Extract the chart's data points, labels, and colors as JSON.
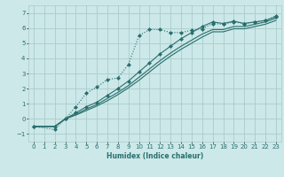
{
  "xlabel": "Humidex (Indice chaleur)",
  "background_color": "#cce8e8",
  "grid_color": "#aacccc",
  "line_color": "#2a6e6e",
  "xlim": [
    -0.5,
    23.5
  ],
  "ylim": [
    -1.5,
    7.5
  ],
  "yticks": [
    -1,
    0,
    1,
    2,
    3,
    4,
    5,
    6,
    7
  ],
  "xticks": [
    0,
    1,
    2,
    3,
    4,
    5,
    6,
    7,
    8,
    9,
    10,
    11,
    12,
    13,
    14,
    15,
    16,
    17,
    18,
    19,
    20,
    21,
    22,
    23
  ],
  "series": [
    {
      "x": [
        0,
        2,
        3,
        4,
        5,
        6,
        7,
        8,
        9,
        10,
        11,
        12,
        13,
        14,
        15,
        16,
        17,
        18,
        19,
        20,
        21,
        22,
        23
      ],
      "y": [
        -0.5,
        -0.7,
        0.0,
        0.8,
        1.7,
        2.1,
        2.6,
        2.7,
        3.6,
        5.5,
        5.9,
        5.9,
        5.7,
        5.7,
        5.85,
        5.95,
        6.3,
        6.25,
        6.4,
        6.3,
        6.4,
        6.5,
        6.8
      ],
      "style": "dotted",
      "marker": "D",
      "markersize": 2.5
    },
    {
      "x": [
        0,
        2,
        3,
        4,
        5,
        6,
        7,
        8,
        9,
        10,
        11,
        12,
        13,
        14,
        15,
        16,
        17,
        18,
        19,
        20,
        21,
        22,
        23
      ],
      "y": [
        -0.5,
        -0.5,
        0.0,
        0.4,
        0.8,
        1.1,
        1.55,
        2.0,
        2.5,
        3.1,
        3.7,
        4.3,
        4.8,
        5.3,
        5.7,
        6.1,
        6.4,
        6.3,
        6.45,
        6.3,
        6.4,
        6.5,
        6.75
      ],
      "style": "solid",
      "marker": "D",
      "markersize": 2.5
    },
    {
      "x": [
        0,
        2,
        3,
        4,
        5,
        6,
        7,
        8,
        9,
        10,
        11,
        12,
        13,
        14,
        15,
        16,
        17,
        18,
        19,
        20,
        21,
        22,
        23
      ],
      "y": [
        -0.5,
        -0.5,
        0.0,
        0.3,
        0.65,
        0.95,
        1.35,
        1.75,
        2.2,
        2.75,
        3.3,
        3.85,
        4.35,
        4.8,
        5.2,
        5.6,
        5.9,
        5.9,
        6.1,
        6.1,
        6.25,
        6.4,
        6.65
      ],
      "style": "solid",
      "marker": null,
      "markersize": 0
    },
    {
      "x": [
        0,
        2,
        3,
        4,
        5,
        6,
        7,
        8,
        9,
        10,
        11,
        12,
        13,
        14,
        15,
        16,
        17,
        18,
        19,
        20,
        21,
        22,
        23
      ],
      "y": [
        -0.5,
        -0.5,
        0.0,
        0.25,
        0.55,
        0.85,
        1.2,
        1.6,
        2.05,
        2.55,
        3.1,
        3.65,
        4.15,
        4.6,
        5.0,
        5.4,
        5.75,
        5.75,
        5.95,
        5.95,
        6.1,
        6.25,
        6.5
      ],
      "style": "solid",
      "marker": null,
      "markersize": 0
    }
  ]
}
